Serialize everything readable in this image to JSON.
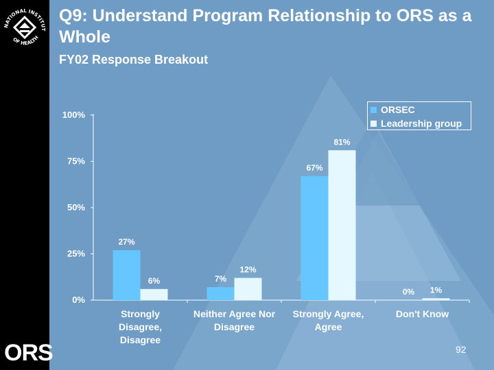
{
  "slide": {
    "title": "Q9: Understand Program Relationship to ORS as a Whole",
    "subtitle": "FY02 Response Breakout",
    "page_number": "92",
    "ors_logo_text": "ORS",
    "nih_logo_text": "NATIONAL INSTITUTES OF HEALTH"
  },
  "colors": {
    "background": "#6f9cc4",
    "orsec": "#66c6ff",
    "leadership": "#e6f8ff"
  },
  "chart_data": {
    "type": "bar",
    "title": "",
    "categories": [
      [
        "Strongly",
        "Disagree,",
        "Disagree"
      ],
      [
        "Neither Agree Nor",
        "Disagree"
      ],
      [
        "Strongly Agree,",
        "Agree"
      ],
      [
        "Don't Know"
      ]
    ],
    "series": [
      {
        "name": "ORSEC",
        "values": [
          27,
          7,
          67,
          0
        ],
        "labels": [
          "27%",
          "7%",
          "67%",
          "0%"
        ]
      },
      {
        "name": "Leadership group",
        "values": [
          6,
          12,
          81,
          1
        ],
        "labels": [
          "6%",
          "12%",
          "81%",
          "1%"
        ]
      }
    ],
    "ylim": [
      0,
      100
    ],
    "yticks": [
      0,
      25,
      50,
      75,
      100
    ],
    "ytick_labels": [
      "0%",
      "25%",
      "50%",
      "75%",
      "100%"
    ],
    "legend_position": "top-right",
    "grid": false
  }
}
